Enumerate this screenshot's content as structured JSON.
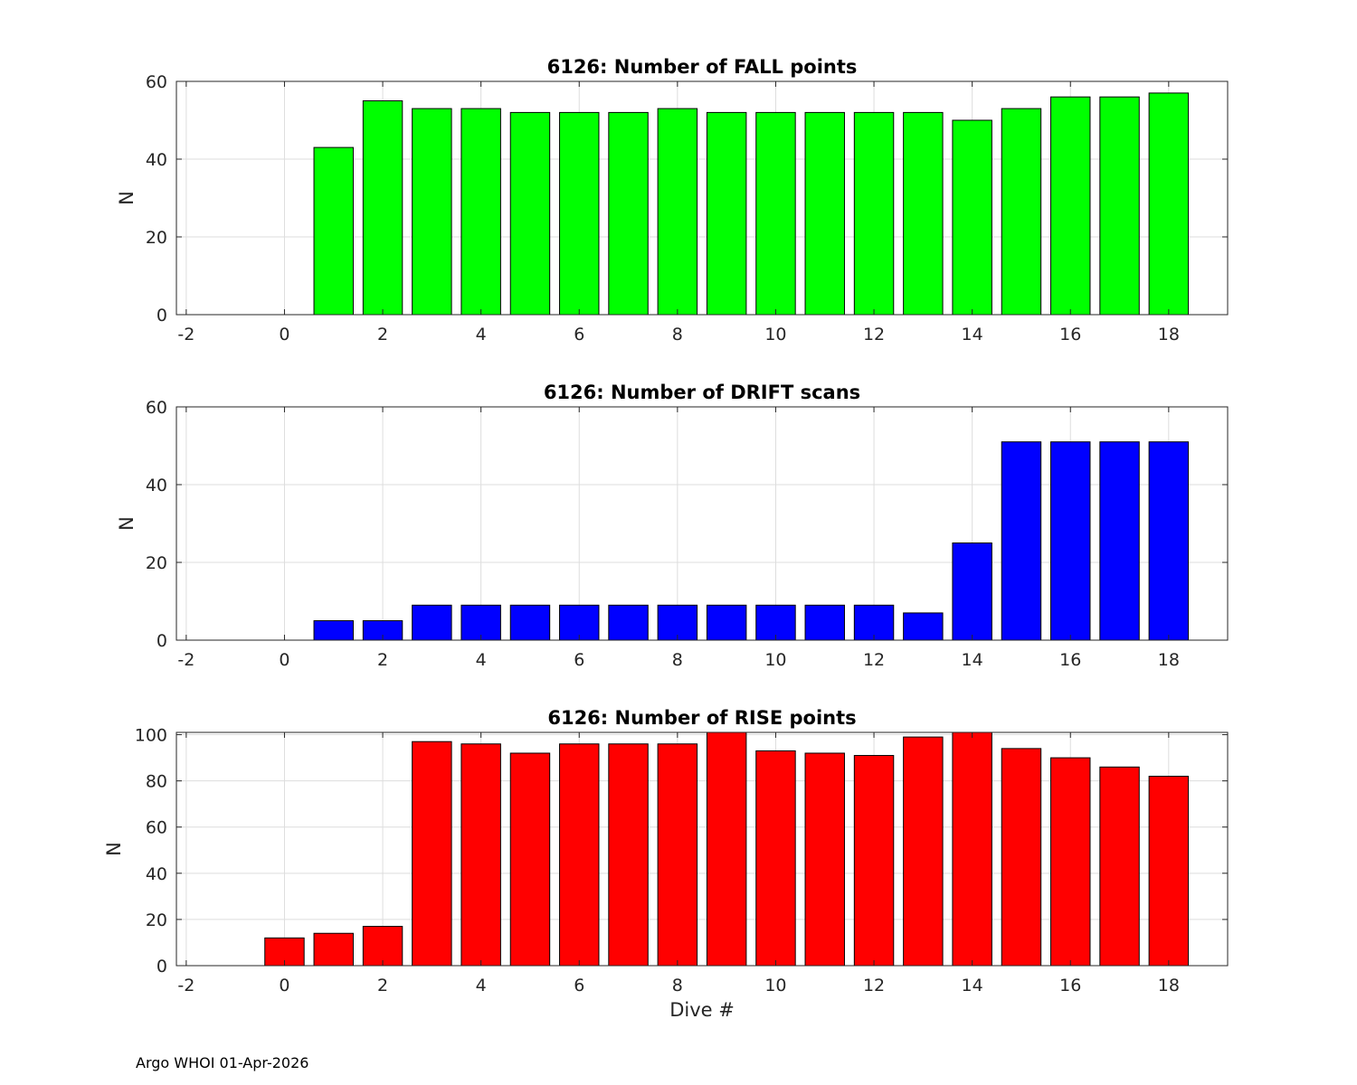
{
  "footer": "Argo WHOI 01-Apr-2026",
  "chart_data": [
    {
      "type": "bar",
      "title": "6126: Number of FALL points",
      "xlabel": "",
      "ylabel": "N",
      "color": "#00ff00",
      "x": [
        1,
        2,
        3,
        4,
        5,
        6,
        7,
        8,
        9,
        10,
        11,
        12,
        13,
        14,
        15,
        16,
        17,
        18
      ],
      "values": [
        43,
        55,
        53,
        53,
        52,
        52,
        52,
        53,
        52,
        52,
        52,
        52,
        52,
        50,
        53,
        56,
        56,
        57
      ],
      "xlim": [
        -2.2,
        19.2
      ],
      "ylim": [
        0,
        60
      ],
      "xticks": [
        -2,
        0,
        2,
        4,
        6,
        8,
        10,
        12,
        14,
        16,
        18
      ],
      "yticks": [
        0,
        20,
        40,
        60
      ],
      "grid": true
    },
    {
      "type": "bar",
      "title": "6126: Number of DRIFT scans",
      "xlabel": "",
      "ylabel": "N",
      "color": "#0000ff",
      "x": [
        1,
        2,
        3,
        4,
        5,
        6,
        7,
        8,
        9,
        10,
        11,
        12,
        13,
        14,
        15,
        16,
        17,
        18
      ],
      "values": [
        5,
        5,
        9,
        9,
        9,
        9,
        9,
        9,
        9,
        9,
        9,
        9,
        7,
        25,
        51,
        51,
        51,
        51
      ],
      "xlim": [
        -2.2,
        19.2
      ],
      "ylim": [
        0,
        60
      ],
      "xticks": [
        -2,
        0,
        2,
        4,
        6,
        8,
        10,
        12,
        14,
        16,
        18
      ],
      "yticks": [
        0,
        20,
        40,
        60
      ],
      "grid": true
    },
    {
      "type": "bar",
      "title": "6126: Number of RISE points",
      "xlabel": "Dive #",
      "ylabel": "N",
      "color": "#ff0000",
      "x": [
        0,
        1,
        2,
        3,
        4,
        5,
        6,
        7,
        8,
        9,
        10,
        11,
        12,
        13,
        14,
        15,
        16,
        17,
        18
      ],
      "values": [
        12,
        14,
        17,
        97,
        96,
        92,
        96,
        96,
        96,
        101,
        93,
        92,
        91,
        99,
        101,
        94,
        90,
        86,
        82
      ],
      "xlim": [
        -2.2,
        19.2
      ],
      "ylim": [
        0,
        101
      ],
      "xticks": [
        -2,
        0,
        2,
        4,
        6,
        8,
        10,
        12,
        14,
        16,
        18
      ],
      "yticks": [
        0,
        20,
        40,
        60,
        80,
        100
      ],
      "grid": true
    }
  ]
}
